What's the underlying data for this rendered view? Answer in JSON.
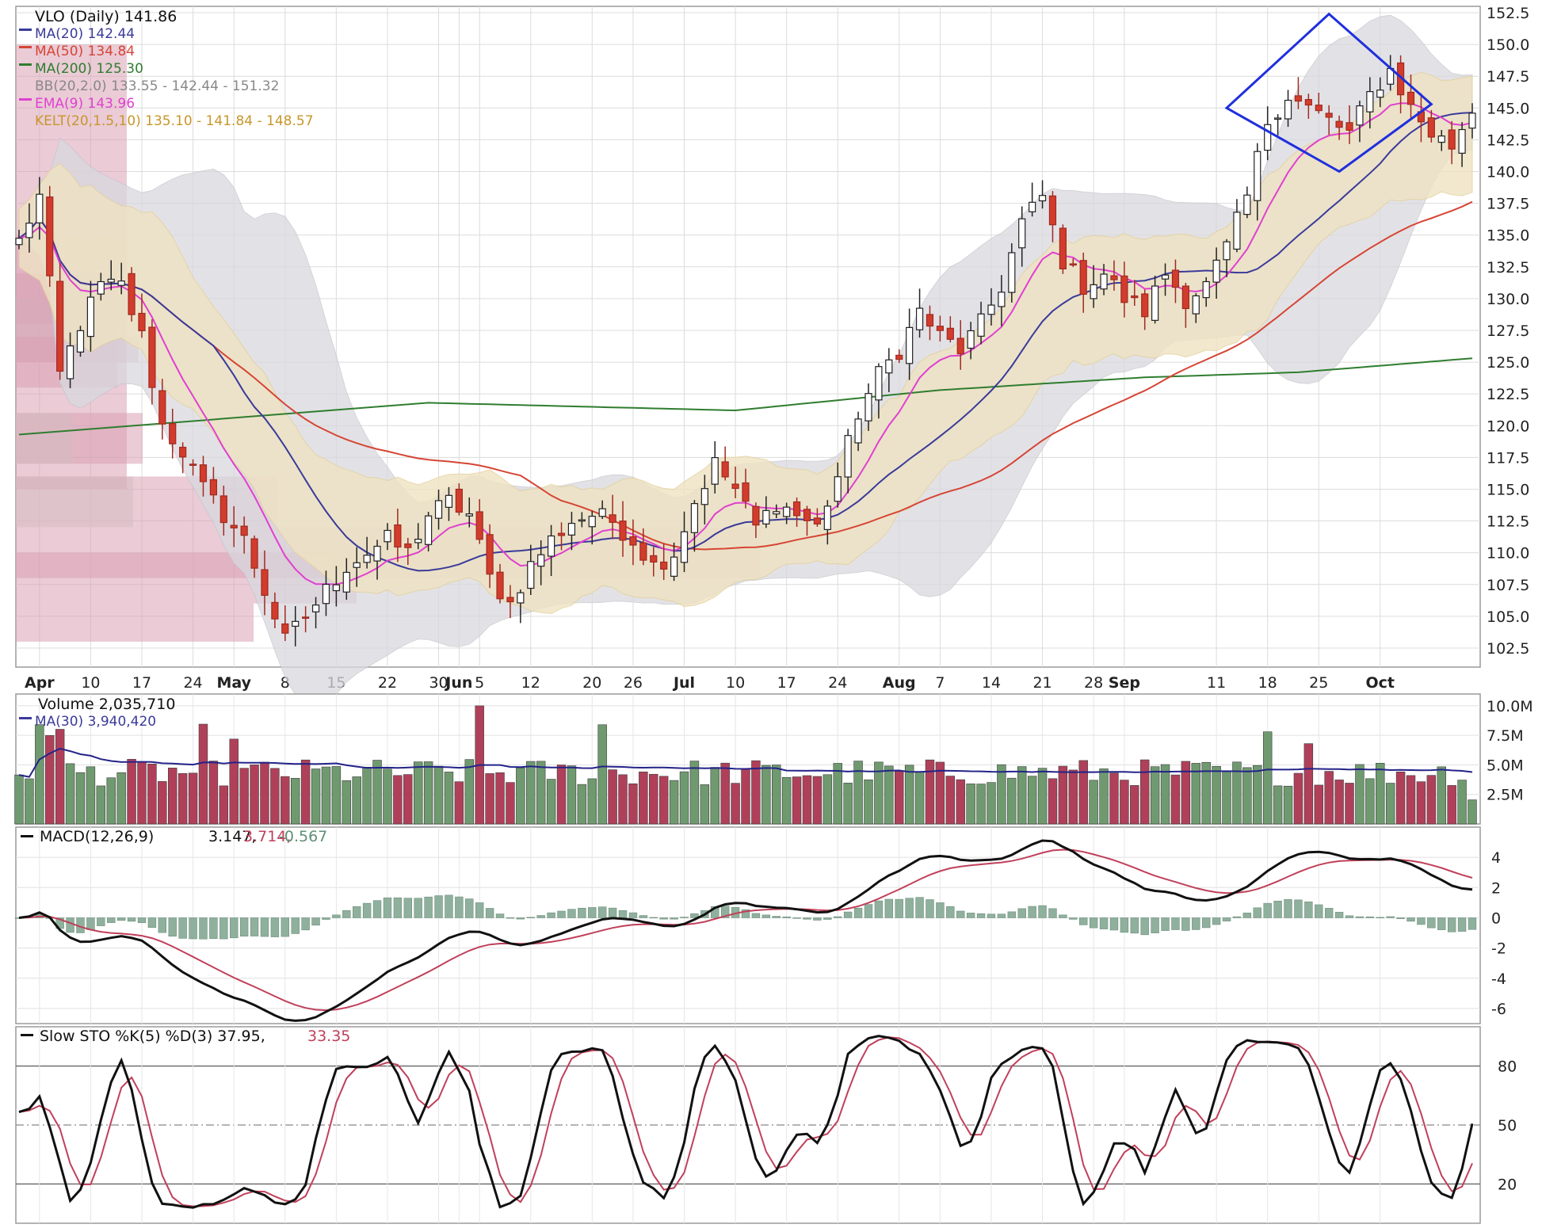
{
  "colors": {
    "up": "#ffffff",
    "down": "#d23c2c",
    "candle_outline": "#222222",
    "ma20": "#3a3a9a",
    "ma50": "#d64535",
    "ma200": "#2f7d2f",
    "ema9": "#e040d0",
    "bb_fill": "#d9d9de",
    "kelt_fill": "#efe3c3",
    "vol_up": "#6f9a6f",
    "vol_down": "#b0405a",
    "macd": "#111111",
    "signal": "#c0405a",
    "hist": "#8fb09c",
    "stok": "#111111",
    "stod": "#c0405a",
    "pattern": "#1f2fdd"
  },
  "price_panel": {
    "legend": {
      "title": "VLO (Daily) 141.86",
      "ma20": "MA(20) 142.44",
      "ma50": "MA(50) 134.84",
      "ma200": "MA(200) 125.30",
      "bb": "BB(20,2.0) 133.55 - 142.44 - 151.32",
      "ema9": "EMA(9) 143.96",
      "kelt": "KELT(20,1.5,10) 135.10 - 141.84 - 148.57"
    },
    "y_ticks": [
      "152.5",
      "150.0",
      "147.5",
      "145.0",
      "142.5",
      "140.0",
      "137.5",
      "135.0",
      "132.5",
      "130.0",
      "127.5",
      "125.0",
      "122.5",
      "120.0",
      "117.5",
      "115.0",
      "112.5",
      "110.0",
      "107.5",
      "105.0",
      "102.5"
    ],
    "x_ticks": [
      "Apr",
      "10",
      "17",
      "24",
      "May",
      "8",
      "15",
      "22",
      "30",
      "Jun",
      "5",
      "12",
      "20",
      "26",
      "Jul",
      "10",
      "17",
      "24",
      "Aug",
      "7",
      "14",
      "21",
      "28",
      "Sep",
      "11",
      "18",
      "25",
      "Oct"
    ]
  },
  "volume_panel": {
    "legend": {
      "title": "Volume 2,035,710",
      "ma30": "MA(30) 3,940,420"
    },
    "y_ticks": [
      "10.0M",
      "7.5M",
      "5.0M",
      "2.5M"
    ]
  },
  "macd_panel": {
    "legend": {
      "title": "MACD(12,26,9)",
      "macd": "3.147,",
      "signal": "3.714,",
      "hist": "-0.567"
    },
    "y_ticks": [
      "4",
      "2",
      "0",
      "-2",
      "-4",
      "-6"
    ]
  },
  "sto_panel": {
    "legend": {
      "title": "Slow STO %K(5) %D(3) 37.95,",
      "d": "33.35"
    },
    "y_ticks": [
      "80",
      "50",
      "20"
    ]
  },
  "chart_data": {
    "type": "candlestick",
    "symbol": "VLO",
    "price_ylim": [
      101,
      153
    ],
    "x_tick_dates": [
      "Apr 3",
      "Apr 10",
      "Apr 17",
      "Apr 24",
      "May 1",
      "May 8",
      "May 15",
      "May 22",
      "May 30",
      "Jun 1",
      "Jun 5",
      "Jun 12",
      "Jun 20",
      "Jun 26",
      "Jul 3",
      "Jul 10",
      "Jul 17",
      "Jul 24",
      "Aug 1",
      "Aug 7",
      "Aug 14",
      "Aug 21",
      "Aug 28",
      "Sep 1",
      "Sep 11",
      "Sep 18",
      "Sep 25",
      "Oct 2"
    ],
    "close_waypoints": [
      [
        0,
        134.5
      ],
      [
        2,
        138
      ],
      [
        4,
        124
      ],
      [
        6,
        128
      ],
      [
        8,
        131
      ],
      [
        10,
        131
      ],
      [
        12,
        127
      ],
      [
        14,
        120
      ],
      [
        16,
        118
      ],
      [
        18,
        115
      ],
      [
        20,
        113
      ],
      [
        22,
        111
      ],
      [
        24,
        107
      ],
      [
        26,
        103
      ],
      [
        28,
        105
      ],
      [
        30,
        107
      ],
      [
        32,
        109
      ],
      [
        34,
        110
      ],
      [
        36,
        111
      ],
      [
        38,
        110
      ],
      [
        40,
        113
      ],
      [
        42,
        114
      ],
      [
        44,
        113
      ],
      [
        46,
        108
      ],
      [
        48,
        106
      ],
      [
        50,
        109
      ],
      [
        52,
        111
      ],
      [
        54,
        112.5
      ],
      [
        56,
        113
      ],
      [
        58,
        112.5
      ],
      [
        60,
        111
      ],
      [
        62,
        109
      ],
      [
        64,
        110
      ],
      [
        66,
        114
      ],
      [
        68,
        117
      ],
      [
        70,
        115
      ],
      [
        72,
        112
      ],
      [
        74,
        114
      ],
      [
        76,
        113
      ],
      [
        78,
        112
      ],
      [
        80,
        116
      ],
      [
        82,
        121
      ],
      [
        84,
        124
      ],
      [
        86,
        126
      ],
      [
        88,
        129
      ],
      [
        90,
        127
      ],
      [
        92,
        126
      ],
      [
        94,
        128
      ],
      [
        96,
        131
      ],
      [
        98,
        136
      ],
      [
        100,
        138
      ],
      [
        102,
        133
      ],
      [
        104,
        131
      ],
      [
        106,
        132
      ],
      [
        108,
        130
      ],
      [
        110,
        129
      ],
      [
        112,
        132
      ],
      [
        114,
        130
      ],
      [
        116,
        131
      ],
      [
        118,
        134
      ],
      [
        120,
        138
      ],
      [
        122,
        144
      ],
      [
        124,
        146
      ],
      [
        126,
        145
      ],
      [
        128,
        144
      ],
      [
        130,
        143
      ],
      [
        132,
        146
      ],
      [
        134,
        148
      ],
      [
        136,
        145
      ],
      [
        138,
        143
      ],
      [
        140,
        142
      ],
      [
        142,
        145
      ]
    ],
    "ma200_waypoints": [
      [
        0,
        119.3
      ],
      [
        40,
        121.8
      ],
      [
        70,
        121.2
      ],
      [
        90,
        122.8
      ],
      [
        110,
        123.8
      ],
      [
        125,
        124.2
      ],
      [
        142,
        125.3
      ]
    ],
    "volume_ylim": [
      0,
      11000000
    ],
    "macd_ylim": [
      -7,
      6
    ],
    "sto_ylim": [
      0,
      100
    ],
    "last": {
      "close": 141.86,
      "ma20": 142.44,
      "ma50": 134.84,
      "ma200": 125.3,
      "ema9": 143.96,
      "bb": [
        133.55,
        142.44,
        151.32
      ],
      "kelt": [
        135.1,
        141.84,
        148.57
      ],
      "volume": 2035710,
      "vol_ma30": 3940420,
      "macd": 3.147,
      "signal": 3.714,
      "hist": -0.567,
      "sto_k": 37.95,
      "sto_d": 33.35
    }
  }
}
